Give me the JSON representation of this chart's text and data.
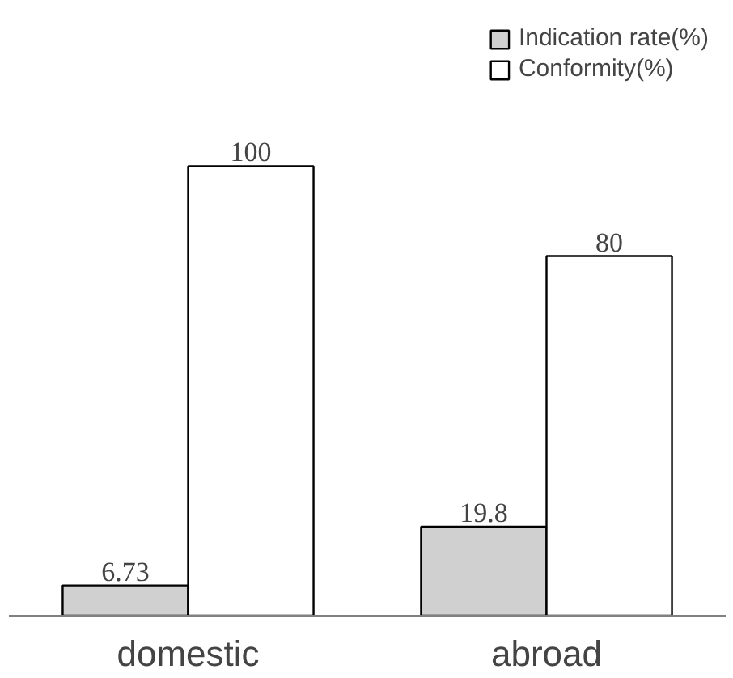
{
  "chart_data": {
    "type": "bar",
    "categories": [
      "domestic",
      "abroad"
    ],
    "series": [
      {
        "name": "Indication rate(%)",
        "color": "#d0d0d0",
        "values": [
          6.73,
          19.8
        ]
      },
      {
        "name": "Conformity(%)",
        "color": "#ffffff",
        "values": [
          100,
          80
        ]
      }
    ],
    "data_labels": true,
    "legend": "top right",
    "grid": false
  }
}
